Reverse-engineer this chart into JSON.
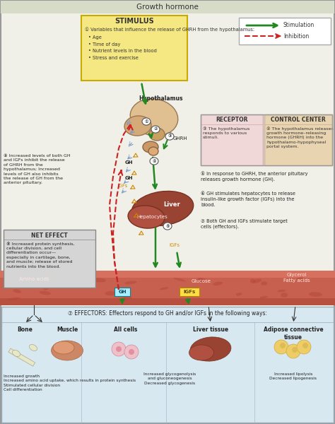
{
  "title": "Growth hormone",
  "title_bg": "#d6dcc8",
  "outer_border": "#999999",
  "main_bg": "#f0f0e8",
  "stimulus_bg": "#f5e882",
  "stimulus_border": "#c8aa00",
  "stimulus_title": "STIMULUS",
  "stimulus_text_line1": "① Variables that influence the release of GHRH from the hypothalamus:",
  "stimulus_bullets": [
    "• Age",
    "• Time of day",
    "• Nutrient levels in the blood",
    "• Stress and exercise"
  ],
  "legend_bg": "#ffffff",
  "legend_border": "#aaaaaa",
  "legend_green": "#228822",
  "legend_red": "#cc2222",
  "legend_stim": "Stimulation",
  "legend_inhib": "Inhibition",
  "receptor_bg": "#f0d8d8",
  "receptor_border": "#ccaaaa",
  "receptor_title": "RECEPTOR",
  "receptor_text": "③ The hypothalamus\nresponds to various\nstimuli.",
  "control_bg": "#e8d4b0",
  "control_border": "#ccaa88",
  "control_title": "CONTROL CENTER",
  "control_text": "④ The hypothalamus releases\ngrowth hormone–releasing\nhormone (GHRH) into the\nhypothalamo-hypophyseal\nportal system.",
  "note4": "⑤ In response to GHRH, the anterior pituitary\nreleases growth hormone (GH).",
  "note5": "⑥ GH stimulates hepatocytes to release\ninsulin-like growth factor (IGFs) into the\nblood.",
  "note6": "⑦ Both GH and IGFs stimulate target\ncells (effectors).",
  "note8": "⑨ Increased levels of both GH\nand IGFs inhibit the release\nof GHRH from the\nhypothalamus; Increased\nlevels of GH also inhibits\nthe release of GH from the\nanterior pituitary.",
  "net_effect_bg": "#d5d5d5",
  "net_effect_border": "#888888",
  "net_effect_title": "NET EFFECT",
  "net_effect_text": "⑧ Increased protein synthesis,\ncellular division, and cell\ndifferentiation occur—\nespecially in cartilage, bone,\nand muscle; release of stored\nnutrients into the blood.",
  "blood_color1": "#b85040",
  "blood_color2": "#c86050",
  "blood_color3": "#d87060",
  "effectors_bg": "#d8e8f0",
  "effectors_border": "#99aabb",
  "effectors_title": "⑦ EFFECTORS: Effectors respond to GH and/or IGFs in the following ways:",
  "hypothalamus_label": "Hypothalamus",
  "liver_label": "Liver",
  "hepatocytes_label": "Hepatocytes",
  "amino_acids_label": "Amino acids",
  "glucose_label": "Glucose",
  "glycerol_label": "Glycerol\nFatty acids",
  "GH_label": "GH",
  "IGFs_label": "IGFs",
  "GHRH_label": "GHRH",
  "bone_label": "Bone",
  "muscle_label": "Muscle",
  "allcells_label": "All cells",
  "liver_tissue_label": "Liver tissue",
  "adipose_label": "Adipose connective\ntissue",
  "bone_text": "Increased growth\nIncreased amino acid uptake, which results in protein synthesis\nStimulated cellular division\nCell differentiation",
  "liver_tissue_text": "Increased glycogenolysis\nand gluconeogenesis\nDecreased glycogenesis",
  "adipose_text": "Increased lipolysis\nDecreased lipogenesis",
  "arrow_green": "#228822",
  "arrow_red": "#cc2222",
  "arrow_orange": "#cc8800",
  "arrow_blue": "#7799cc"
}
